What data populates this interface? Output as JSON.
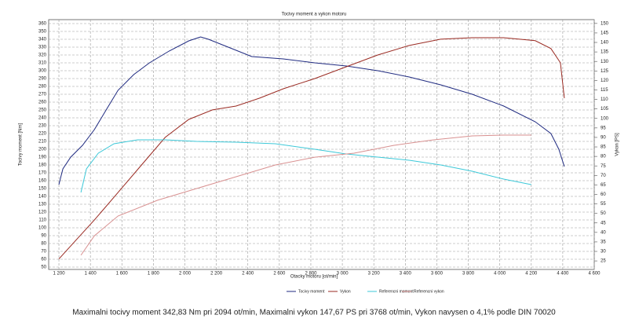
{
  "chart_data": {
    "type": "line",
    "title": "Tocivy moment a vykon motoru",
    "xlabel": "Otacky motoru [ot/min]",
    "ylabel": "Tocivy moment [Nm]",
    "y2label": "Vykon [PS]",
    "caption": "Maximalni tocivy moment 342,83 Nm pri 2094 ot/min,  Maximalni vykon 147,67 PS pri 3768 ot/min,  Vykon navysen o 4,1% podle DIN 70020",
    "xlim": [
      1135,
      4600
    ],
    "ylim": [
      47,
      365
    ],
    "y2lim": [
      20.5,
      152
    ],
    "grid": true,
    "xticks": [
      {
        "value": 1200,
        "label": "1 200"
      },
      {
        "value": 1400,
        "label": "1 400"
      },
      {
        "value": 1600,
        "label": "1 600"
      },
      {
        "value": 1800,
        "label": "1 800"
      },
      {
        "value": 2000,
        "label": "2 000"
      },
      {
        "value": 2200,
        "label": "2 200"
      },
      {
        "value": 2400,
        "label": "2 400"
      },
      {
        "value": 2600,
        "label": "2 600"
      },
      {
        "value": 2800,
        "label": "2 800"
      },
      {
        "value": 3000,
        "label": "3 000"
      },
      {
        "value": 3200,
        "label": "3 200"
      },
      {
        "value": 3400,
        "label": "3 400"
      },
      {
        "value": 3600,
        "label": "3 600"
      },
      {
        "value": 3800,
        "label": "3 800"
      },
      {
        "value": 4000,
        "label": "4 000"
      },
      {
        "value": 4200,
        "label": "4 200"
      },
      {
        "value": 4400,
        "label": "4 400"
      },
      {
        "value": 4600,
        "label": "4 600"
      }
    ],
    "yticks": [
      50,
      60,
      70,
      80,
      90,
      100,
      110,
      120,
      130,
      140,
      150,
      160,
      170,
      180,
      190,
      200,
      210,
      220,
      230,
      240,
      250,
      260,
      270,
      280,
      290,
      300,
      310,
      320,
      330,
      340,
      350,
      360
    ],
    "y2ticks": [
      25,
      30,
      35,
      40,
      45,
      50,
      55,
      60,
      65,
      70,
      75,
      80,
      85,
      90,
      95,
      100,
      105,
      110,
      115,
      120,
      125,
      130,
      135,
      140,
      145,
      150
    ],
    "series": [
      {
        "name": "Tocivy moment",
        "color": "#1f2a80",
        "axis": "y",
        "x": [
          1200,
          1225,
          1275,
          1350,
          1425,
          1500,
          1575,
          1675,
          1775,
          1900,
          2025,
          2100,
          2150,
          2275,
          2425,
          2625,
          2825,
          3025,
          3225,
          3425,
          3625,
          3825,
          4025,
          4225,
          4325,
          4375,
          4410
        ],
        "values": [
          155,
          175,
          190,
          205,
          225,
          250,
          275,
          295,
          310,
          325,
          338,
          343,
          340,
          330,
          318,
          315,
          310,
          306,
          300,
          292,
          282,
          270,
          255,
          235,
          220,
          200,
          178
        ]
      },
      {
        "name": "Vykon",
        "color": "#9a2a22",
        "axis": "y2",
        "x": [
          1200,
          1325,
          1425,
          1575,
          1725,
          1875,
          2025,
          2175,
          2325,
          2475,
          2625,
          2825,
          3025,
          3225,
          3425,
          3625,
          3825,
          4025,
          4225,
          4325,
          4385,
          4410
        ],
        "values": [
          26,
          37.4,
          46.5,
          61,
          75.5,
          90,
          99.5,
          104.5,
          106.5,
          110.7,
          115.6,
          121,
          127.2,
          133.4,
          138.4,
          141.7,
          142.5,
          142.5,
          140.9,
          136.8,
          129.3,
          110.7
        ]
      },
      {
        "name": "Referencni moment",
        "color": "#3cc8d8",
        "axis": "y",
        "x": [
          1340,
          1375,
          1450,
          1550,
          1700,
          1875,
          2075,
          2325,
          2575,
          2825,
          3025,
          3225,
          3425,
          3625,
          3825,
          4025,
          4200
        ],
        "values": [
          145,
          175,
          195,
          207,
          212,
          212,
          210,
          209,
          207,
          200,
          194,
          190,
          186,
          180,
          172,
          162,
          155
        ]
      },
      {
        "name": "Referencni vykon",
        "color": "#d89090",
        "axis": "y2",
        "x": [
          1340,
          1425,
          1575,
          1825,
          2075,
          2325,
          2575,
          2825,
          3075,
          3325,
          3575,
          3825,
          4025,
          4200
        ],
        "values": [
          28,
          38.2,
          48.6,
          56.9,
          63.1,
          69.3,
          75.5,
          79.6,
          81.7,
          85.8,
          88.7,
          90.8,
          91.2,
          91.2
        ]
      }
    ]
  }
}
